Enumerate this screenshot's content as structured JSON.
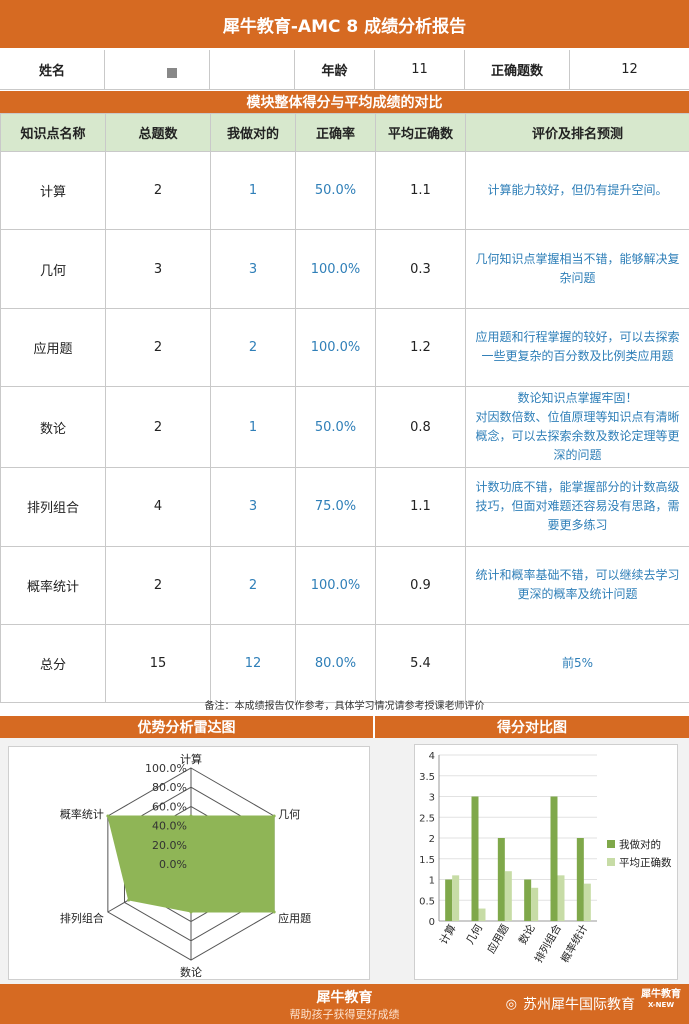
{
  "header": {
    "title": "犀牛教育-AMC 8 成绩分析报告"
  },
  "info": {
    "name_label": "姓名",
    "name_value": "",
    "age_label": "年龄",
    "age_value": "11",
    "correct_label": "正确题数",
    "correct_value": "12"
  },
  "module_title": "模块整体得分与平均成绩的对比",
  "table": {
    "columns": [
      "知识点名称",
      "总题数",
      "我做对的",
      "正确率",
      "平均正确数",
      "评价及排名预测"
    ],
    "rows": [
      [
        "计算",
        "2",
        "1",
        "50.0%",
        "1.1",
        "计算能力较好，但仍有提升空间。"
      ],
      [
        "几何",
        "3",
        "3",
        "100.0%",
        "0.3",
        "几何知识点掌握相当不错，能够解决复杂问题"
      ],
      [
        "应用题",
        "2",
        "2",
        "100.0%",
        "1.2",
        "应用题和行程掌握的较好，可以去探索一些更复杂的百分数及比例类应用题"
      ],
      [
        "数论",
        "2",
        "1",
        "50.0%",
        "0.8",
        "数论知识点掌握牢固！\n对因数倍数、位值原理等知识点有清晰概念，可以去探索余数及数论定理等更深的问题"
      ],
      [
        "排列组合",
        "4",
        "3",
        "75.0%",
        "1.1",
        "计数功底不错，能掌握部分的计数高级技巧，但面对难题还容易没有思路，需要更多练习"
      ],
      [
        "概率统计",
        "2",
        "2",
        "100.0%",
        "0.9",
        "统计和概率基础不错，可以继续去学习更深的概率及统计问题"
      ],
      [
        "总分",
        "15",
        "12",
        "80.0%",
        "5.4",
        "前5%"
      ]
    ]
  },
  "note": "备注：本成绩报告仅作参考，具体学习情况请参考授课老师评价",
  "radar_title": "优势分析雷达图",
  "bar_title": "得分对比图",
  "chart_data": [
    {
      "type": "radar",
      "title": "优势分析雷达图",
      "categories": [
        "计算",
        "几何",
        "应用题",
        "数论",
        "排列组合",
        "概率统计"
      ],
      "values": [
        50.0,
        100.0,
        100.0,
        50.0,
        75.0,
        100.0
      ],
      "r_ticks": [
        "0.0%",
        "20.0%",
        "40.0%",
        "60.0%",
        "80.0%",
        "100.0%"
      ],
      "rlim": [
        0,
        100
      ],
      "color": "#8fb556"
    },
    {
      "type": "bar",
      "title": "得分对比图",
      "categories": [
        "计算",
        "几何",
        "应用题",
        "数论",
        "排列组合",
        "概率统计"
      ],
      "series": [
        {
          "name": "我做对的",
          "values": [
            1,
            3,
            2,
            1,
            3,
            2
          ],
          "color": "#7fa84a"
        },
        {
          "name": "平均正确数",
          "values": [
            1.1,
            0.3,
            1.2,
            0.8,
            1.1,
            0.9
          ],
          "color": "#c7dca6"
        }
      ],
      "y_ticks": [
        "0",
        "0.5",
        "1",
        "1.5",
        "2",
        "2.5",
        "3",
        "3.5",
        "4"
      ],
      "ylim": [
        0,
        4
      ],
      "legend": "right"
    }
  ],
  "footer": {
    "brand": "犀牛教育",
    "slogan": "帮助孩子获得更好成绩",
    "watermark": "苏州犀牛国际教育",
    "logo_text": "犀牛教育",
    "logo_sub": "X-NEW"
  },
  "colors": {
    "accent": "#d66a22",
    "header_fill": "#d7e8cd",
    "blue_text": "#2f7fb8"
  }
}
